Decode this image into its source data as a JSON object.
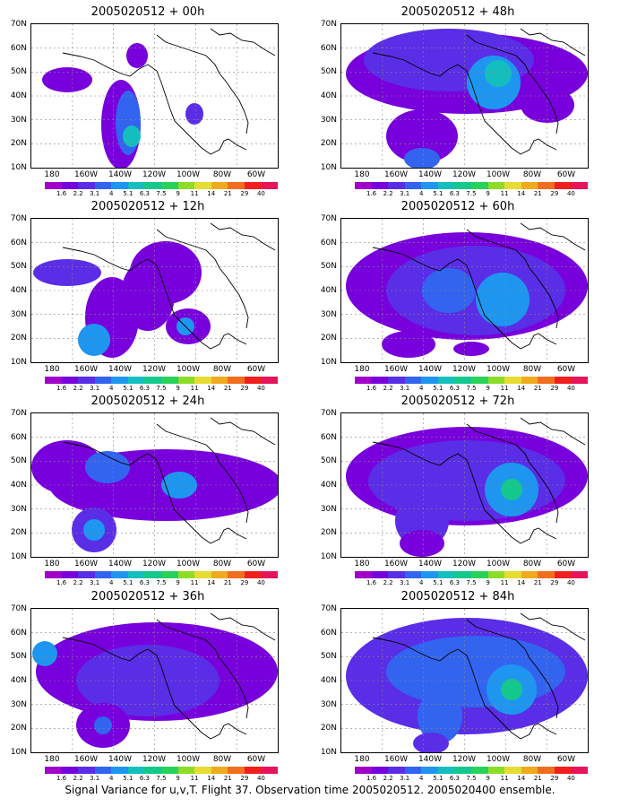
{
  "panels": [
    {
      "title": "2005020512 + 00h"
    },
    {
      "title": "2005020512 + 48h"
    },
    {
      "title": "2005020512 + 12h"
    },
    {
      "title": "2005020512 + 60h"
    },
    {
      "title": "2005020512 + 24h"
    },
    {
      "title": "2005020512 + 72h"
    },
    {
      "title": "2005020512 + 36h"
    },
    {
      "title": "2005020512 + 84h"
    }
  ],
  "lat_labels": [
    "70N",
    "60N",
    "50N",
    "40N",
    "30N",
    "20N",
    "10N"
  ],
  "lon_labels": [
    "180",
    "160W",
    "140W",
    "120W",
    "100W",
    "80W",
    "60W"
  ],
  "colorbar": {
    "labels": [
      "1.6",
      "2.2",
      "3.1",
      "4",
      "5.1",
      "6.3",
      "7.5",
      "9",
      "11",
      "14",
      "21",
      "29",
      "40"
    ],
    "colors": [
      "#a000c8",
      "#7800dc",
      "#5a2de6",
      "#3264f0",
      "#1e96f0",
      "#14bebe",
      "#14c88c",
      "#28d25a",
      "#8cdc28",
      "#e6dc32",
      "#f0aa1e",
      "#f06e1e",
      "#f01e1e",
      "#e6145a"
    ]
  },
  "caption": "Signal Variance for u,v,T. Flight 37. Observation time 2005020512. 2005020400 ensemble."
}
